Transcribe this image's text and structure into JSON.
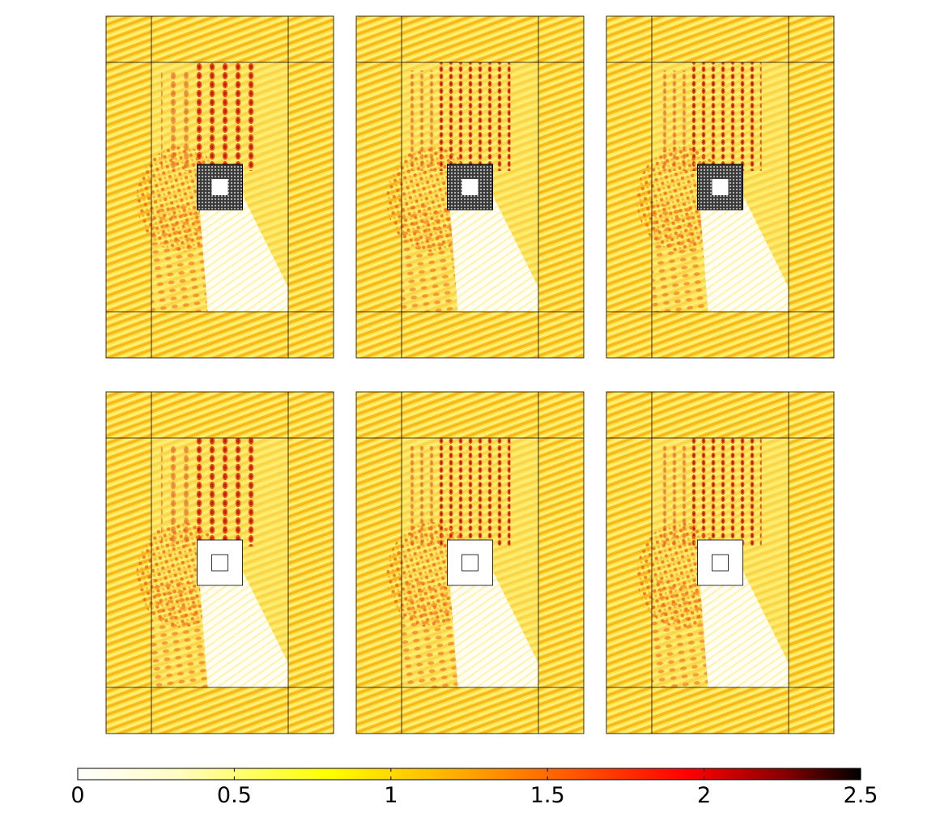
{
  "figure": {
    "panels": [
      {
        "id": "top-left",
        "inner_object": "textured-square"
      },
      {
        "id": "top-middle",
        "inner_object": "textured-square"
      },
      {
        "id": "top-right",
        "inner_object": "textured-square"
      },
      {
        "id": "bottom-left",
        "inner_object": "outline-square"
      },
      {
        "id": "bottom-middle",
        "inner_object": "outline-square"
      },
      {
        "id": "bottom-right",
        "inner_object": "outline-square"
      }
    ]
  },
  "colorbar": {
    "min": 0,
    "max": 2.5,
    "tick_values": [
      0,
      0.5,
      1,
      1.5,
      2,
      2.5
    ],
    "tick_labels": [
      "0",
      "0.5",
      "1",
      "1.5",
      "2",
      "2.5"
    ],
    "colormap": [
      "#ffffff",
      "#fffcc8",
      "#ffff00",
      "#ffb000",
      "#ff5a00",
      "#ff0000",
      "#800000",
      "#000000"
    ]
  }
}
